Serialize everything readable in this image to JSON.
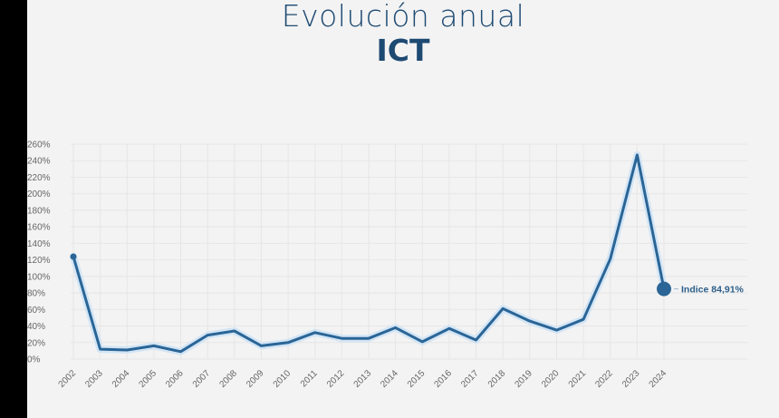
{
  "header": {
    "title": "Evolución anual",
    "subtitle": "ICT"
  },
  "colors": {
    "line": "#2a6596",
    "glow": "#cfe3f5",
    "grid": "#e6e6e6",
    "text": "#1d4a72"
  },
  "chart_data": {
    "type": "line",
    "title": "Evolución anual",
    "subtitle": "ICT",
    "xlabel": "",
    "ylabel": "",
    "ylim": [
      0,
      260
    ],
    "y_ticks": [
      "0%",
      "20%",
      "40%",
      "60%",
      "80%",
      "100%",
      "120%",
      "140%",
      "160%",
      "180%",
      "200%",
      "220%",
      "240%",
      "260%"
    ],
    "grid": true,
    "categories": [
      "2002",
      "2003",
      "2004",
      "2005",
      "2006",
      "2007",
      "2008",
      "2009",
      "2010",
      "2011",
      "2012",
      "2013",
      "2014",
      "2015",
      "2016",
      "2017",
      "2018",
      "2019",
      "2020",
      "2021",
      "2022",
      "2023",
      "2024"
    ],
    "series": [
      {
        "values": [
          124,
          12,
          11,
          16,
          9,
          29,
          34,
          16,
          20,
          32,
          25,
          25,
          38,
          21,
          37,
          23,
          61,
          46,
          35,
          48,
          121,
          247,
          84.91
        ]
      }
    ],
    "annotation": {
      "label": "Indice 84,91%",
      "category": "2024",
      "value": 84.91
    }
  }
}
